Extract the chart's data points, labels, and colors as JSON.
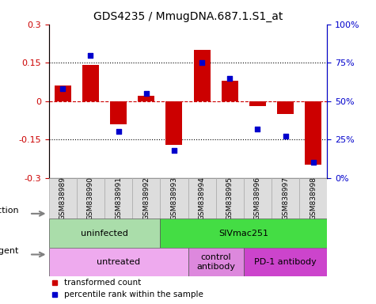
{
  "title": "GDS4235 / MmugDNA.687.1.S1_at",
  "samples": [
    "GSM838989",
    "GSM838990",
    "GSM838991",
    "GSM838992",
    "GSM838993",
    "GSM838994",
    "GSM838995",
    "GSM838996",
    "GSM838997",
    "GSM838998"
  ],
  "bar_values": [
    0.06,
    0.14,
    -0.09,
    0.02,
    -0.17,
    0.2,
    0.08,
    -0.02,
    -0.05,
    -0.25
  ],
  "dot_values": [
    58,
    80,
    30,
    55,
    18,
    75,
    65,
    32,
    27,
    10
  ],
  "ylim": [
    -0.3,
    0.3
  ],
  "y2lim": [
    0,
    100
  ],
  "bar_color": "#cc0000",
  "dot_color": "#0000cc",
  "hline_color": "#cc0000",
  "dotline_values": [
    0.15,
    -0.15
  ],
  "infection_labels": [
    {
      "text": "uninfected",
      "start": 0,
      "end": 4,
      "color": "#aaddaa"
    },
    {
      "text": "SIVmac251",
      "start": 4,
      "end": 10,
      "color": "#44dd44"
    }
  ],
  "agent_labels": [
    {
      "text": "untreated",
      "start": 0,
      "end": 5,
      "color": "#eeaaee"
    },
    {
      "text": "control\nantibody",
      "start": 5,
      "end": 7,
      "color": "#dd88dd"
    },
    {
      "text": "PD-1 antibody",
      "start": 7,
      "end": 10,
      "color": "#cc44cc"
    }
  ],
  "legend_items": [
    {
      "color": "#cc0000",
      "label": "transformed count"
    },
    {
      "color": "#0000cc",
      "label": "percentile rank within the sample"
    }
  ],
  "tick_fontsize": 6.5,
  "title_fontsize": 10,
  "ytick_fontsize": 8,
  "sample_box_color": "#dddddd",
  "sample_box_edge": "#aaaaaa"
}
